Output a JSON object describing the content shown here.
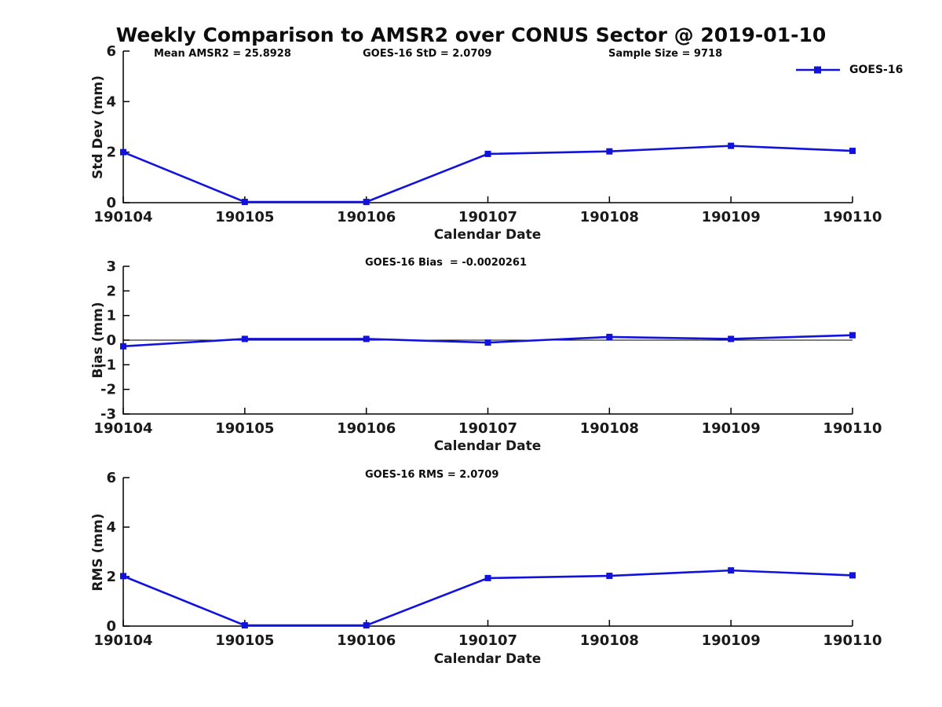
{
  "title": "Weekly Comparison to AMSR2 over CONUS Sector @ 2019-01-10",
  "legend": {
    "label": "GOES-16",
    "position": "top-right"
  },
  "colors": {
    "series": "#1212dd",
    "axis": "#000000",
    "text": "#0d0d0d",
    "zero_line": "#000000",
    "background": "#ffffff"
  },
  "chart_data": [
    {
      "type": "line",
      "name": "std-dev",
      "annotations": [
        {
          "text": "Mean AMSR2 = 25.8928"
        },
        {
          "text": "GOES-16 StD = 2.0709"
        },
        {
          "text": "Sample Size = 9718"
        }
      ],
      "categories": [
        "190104",
        "190105",
        "190106",
        "190107",
        "190108",
        "190109",
        "190110"
      ],
      "series": [
        {
          "name": "GOES-16",
          "values": [
            2.0,
            0.03,
            0.03,
            1.93,
            2.03,
            2.25,
            2.05
          ]
        }
      ],
      "xlabel": "Calendar Date",
      "ylabel": "Std Dev (mm)",
      "ylim": [
        0,
        6
      ],
      "yticks": [
        0,
        2,
        4,
        6
      ],
      "zero_line": false,
      "grid": false
    },
    {
      "type": "line",
      "name": "bias",
      "annotations": [
        {
          "text": "GOES-16 Bias  = -0.0020261"
        }
      ],
      "categories": [
        "190104",
        "190105",
        "190106",
        "190107",
        "190108",
        "190109",
        "190110"
      ],
      "series": [
        {
          "name": "GOES-16",
          "values": [
            -0.25,
            0.05,
            0.05,
            -0.1,
            0.13,
            0.05,
            0.2
          ]
        }
      ],
      "xlabel": "Calendar Date",
      "ylabel": "Bias (mm)",
      "ylim": [
        -3,
        3
      ],
      "yticks": [
        -3,
        -2,
        -1,
        0,
        1,
        2,
        3
      ],
      "zero_line": true,
      "grid": false
    },
    {
      "type": "line",
      "name": "rms",
      "annotations": [
        {
          "text": "GOES-16 RMS = 2.0709"
        }
      ],
      "categories": [
        "190104",
        "190105",
        "190106",
        "190107",
        "190108",
        "190109",
        "190110"
      ],
      "series": [
        {
          "name": "GOES-16",
          "values": [
            2.02,
            0.03,
            0.03,
            1.94,
            2.03,
            2.25,
            2.05
          ]
        }
      ],
      "xlabel": "Calendar Date",
      "ylabel": "RMS (mm)",
      "ylim": [
        0,
        6
      ],
      "yticks": [
        0,
        2,
        4,
        6
      ],
      "zero_line": false,
      "grid": false
    }
  ]
}
